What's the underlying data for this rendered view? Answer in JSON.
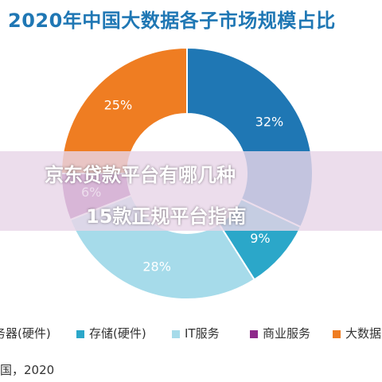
{
  "title": "2020年中国大数据各子市场规模占比",
  "chart_data": {
    "type": "pie",
    "title": "2020年中国大数据各子市场规模占比",
    "slices": [
      {
        "name": "服务器(硬件)",
        "value": 32,
        "label": "32%",
        "color": "#1f77b4"
      },
      {
        "name": "存储(硬件)",
        "value": 9,
        "label": "9%",
        "color": "#2ba7c9"
      },
      {
        "name": "IT服务",
        "value": 28,
        "label": "28%",
        "color": "#a6dbea"
      },
      {
        "name": "商业服务",
        "value": 6,
        "label": "6%",
        "color": "#8e2a8a"
      },
      {
        "name": "大数据",
        "value": 25,
        "label": "25%",
        "color": "#ef7d22"
      }
    ],
    "legend_position": "bottom"
  },
  "legend_labels": [
    "务器(硬件)",
    "存储(硬件)",
    "IT服务",
    "商业服务",
    "大数据"
  ],
  "banner": {
    "line1": "京东贷款平台有哪几种",
    "line2": "15款正规平台指南"
  },
  "source": "国，2020"
}
